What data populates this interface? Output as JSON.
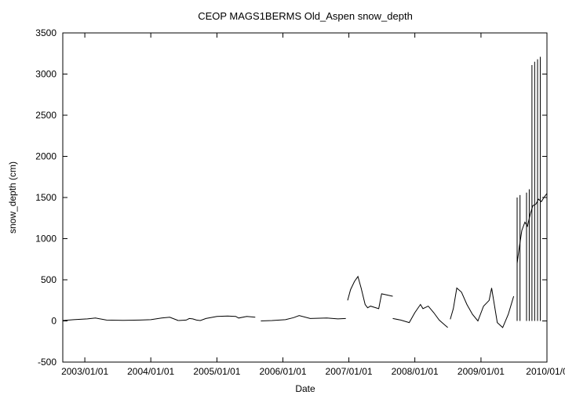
{
  "chart_data": {
    "type": "line",
    "title": "CEOP MAGS1BERMS Old_Aspen  snow_depth",
    "xlabel": "Date",
    "ylabel": "snow_depth (cm)",
    "xlim": [
      "2002-09-01",
      "2010-01-01"
    ],
    "ylim": [
      -500,
      3500
    ],
    "x_ticks": [
      "2003/01/01",
      "2004/01/01",
      "2005/01/01",
      "2006/01/01",
      "2007/01/01",
      "2008/01/01",
      "2009/01/01",
      "2010/01/0"
    ],
    "y_ticks": [
      -500,
      0,
      500,
      1000,
      1500,
      2000,
      2500,
      3000,
      3500
    ],
    "grid": false,
    "series": [
      {
        "name": "",
        "color": "#000000",
        "segments": [
          {
            "x": [
              "2002-09-01",
              "2002-11-01",
              "2003-01-15",
              "2003-03-01",
              "2003-05-01",
              "2003-08-01",
              "2003-11-01",
              "2004-01-01",
              "2004-03-01",
              "2004-04-15",
              "2004-06-01"
            ],
            "y": [
              5,
              15,
              25,
              35,
              10,
              8,
              10,
              15,
              35,
              45,
              5
            ]
          },
          {
            "x": [
              "2004-06-01",
              "2004-07-15",
              "2004-08-01",
              "2004-08-20",
              "2004-09-10",
              "2004-10-01",
              "2004-11-01",
              "2005-01-01",
              "2005-03-01",
              "2005-04-15",
              "2005-05-01",
              "2005-06-15",
              "2005-08-01"
            ],
            "y": [
              5,
              10,
              30,
              25,
              10,
              5,
              30,
              55,
              60,
              55,
              35,
              55,
              45
            ]
          },
          {
            "x": [
              "2005-09-01",
              "2005-11-01",
              "2006-01-15",
              "2006-03-01",
              "2006-04-01",
              "2006-06-01",
              "2006-09-01",
              "2006-11-01",
              "2006-12-15"
            ],
            "y": [
              0,
              5,
              15,
              40,
              65,
              30,
              35,
              25,
              30
            ]
          },
          {
            "x": [
              "2006-12-25",
              "2007-01-10",
              "2007-02-01",
              "2007-02-20",
              "2007-03-10",
              "2007-04-01",
              "2007-04-15",
              "2007-05-01",
              "2007-06-15",
              "2007-07-01",
              "2007-09-01"
            ],
            "y": [
              250,
              380,
              480,
              540,
              400,
              200,
              160,
              180,
              150,
              330,
              300
            ]
          },
          {
            "x": [
              "2007-09-01",
              "2007-10-15",
              "2007-12-01",
              "2008-01-01",
              "2008-02-01",
              "2008-02-15",
              "2008-03-15",
              "2008-04-15",
              "2008-05-15",
              "2008-06-15",
              "2008-07-01"
            ],
            "y": [
              30,
              10,
              -20,
              100,
              200,
              150,
              180,
              100,
              10,
              -50,
              -80
            ]
          },
          {
            "x": [
              "2008-07-15",
              "2008-08-01",
              "2008-08-20",
              "2008-09-15",
              "2008-10-15",
              "2008-11-15",
              "2008-12-15",
              "2009-01-15",
              "2009-02-15",
              "2009-03-01",
              "2009-04-01",
              "2009-05-01",
              "2009-06-01",
              "2009-07-01"
            ],
            "y": [
              20,
              150,
              400,
              350,
              200,
              80,
              0,
              180,
              250,
              400,
              -20,
              -80,
              80,
              300
            ]
          },
          {
            "x": [
              "2009-07-20",
              "2009-08-01",
              "2009-08-15",
              "2009-09-01",
              "2009-09-15",
              "2009-10-01",
              "2009-10-15",
              "2009-11-01",
              "2009-11-15",
              "2009-12-01",
              "2009-12-15",
              "2010-01-01"
            ],
            "y": [
              700,
              900,
              1100,
              1200,
              1150,
              1300,
              1400,
              1420,
              1480,
              1450,
              1500,
              1550
            ]
          }
        ],
        "spikes": [
          {
            "x": "2009-07-20",
            "y": 1500
          },
          {
            "x": "2009-08-05",
            "y": 1530
          },
          {
            "x": "2009-09-10",
            "y": 1560
          },
          {
            "x": "2009-09-25",
            "y": 1600
          },
          {
            "x": "2009-10-10",
            "y": 3110
          },
          {
            "x": "2009-10-25",
            "y": 3150
          },
          {
            "x": "2009-11-10",
            "y": 3180
          },
          {
            "x": "2009-11-25",
            "y": 3210
          }
        ]
      }
    ]
  }
}
